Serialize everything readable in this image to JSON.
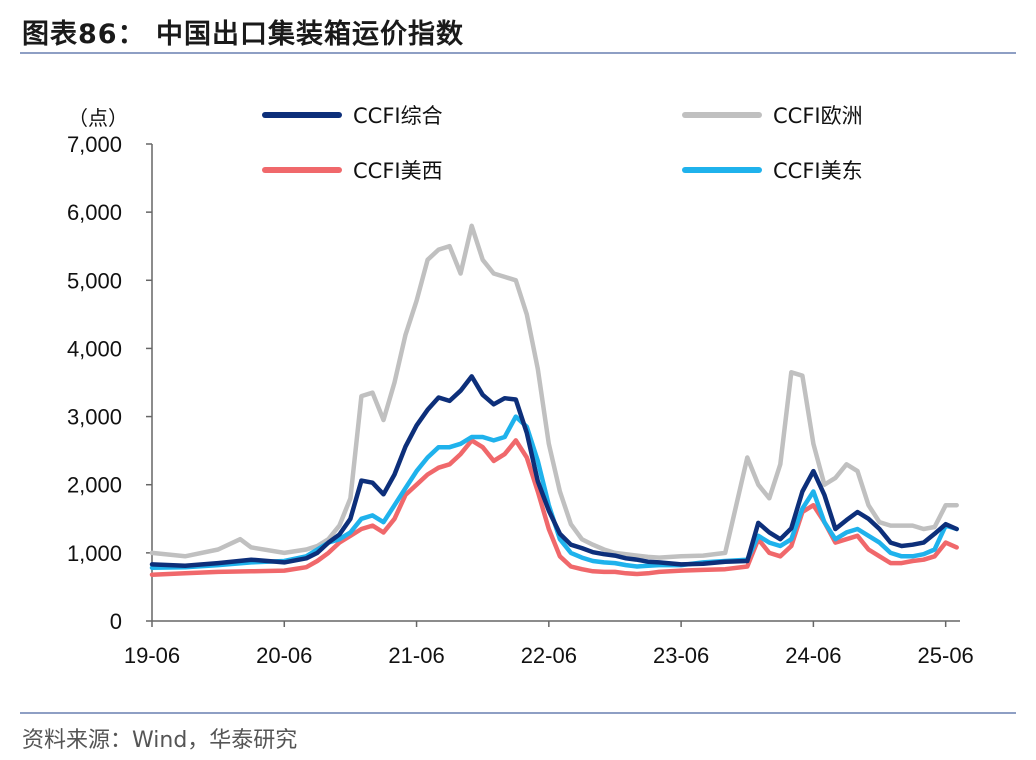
{
  "header": {
    "title": "图表86：  中国出口集装箱运价指数"
  },
  "footer": {
    "source": "资料来源：Wind，华泰研究"
  },
  "chart_data": {
    "type": "line",
    "title": "中国出口集装箱运价指数",
    "ylabel": "（点）",
    "xlabel": "",
    "ylim": [
      0,
      7000
    ],
    "yticks": [
      0,
      1000,
      2000,
      3000,
      4000,
      5000,
      6000,
      7000
    ],
    "ytick_labels": [
      "0",
      "1,000",
      "2,000",
      "3,000",
      "4,000",
      "5,000",
      "6,000",
      "7,000"
    ],
    "xlim": [
      0,
      73.3
    ],
    "x_unit": "months since 2019-06",
    "xticks": [
      0,
      12,
      24,
      36,
      48,
      60,
      72
    ],
    "xtick_labels": [
      "19-06",
      "20-06",
      "21-06",
      "22-06",
      "23-06",
      "24-06",
      "25-06"
    ],
    "grid": false,
    "legend_position": "top",
    "series": [
      {
        "name": "CCFI综合",
        "color": "#0d2f7a",
        "x": [
          0,
          3,
          6,
          9,
          12,
          14,
          15,
          16,
          17,
          18,
          19,
          20,
          21,
          22,
          23,
          24,
          25,
          26,
          27,
          28,
          29,
          30,
          31,
          32,
          33,
          34,
          35,
          36,
          37,
          38,
          39,
          40,
          41,
          42,
          43,
          44,
          45,
          46,
          48,
          50,
          52,
          54,
          55,
          56,
          57,
          58,
          59,
          60,
          61,
          62,
          63,
          64,
          65,
          66,
          67,
          68,
          69,
          70,
          71,
          72,
          73
        ],
        "values": [
          830,
          810,
          850,
          900,
          860,
          920,
          1000,
          1150,
          1270,
          1500,
          2060,
          2030,
          1860,
          2150,
          2560,
          2870,
          3100,
          3280,
          3230,
          3380,
          3590,
          3320,
          3180,
          3270,
          3250,
          2760,
          2050,
          1620,
          1280,
          1120,
          1070,
          1010,
          980,
          960,
          920,
          900,
          870,
          860,
          830,
          840,
          870,
          880,
          1440,
          1300,
          1200,
          1360,
          1900,
          2200,
          1850,
          1350,
          1480,
          1600,
          1500,
          1350,
          1150,
          1100,
          1120,
          1150,
          1280,
          1420,
          1350
        ]
      },
      {
        "name": "CCFI欧洲",
        "color": "#c0c0c0",
        "x": [
          0,
          3,
          6,
          8,
          9,
          12,
          14,
          15,
          16,
          17,
          18,
          19,
          20,
          21,
          22,
          23,
          24,
          25,
          26,
          27,
          28,
          29,
          30,
          31,
          32,
          33,
          34,
          35,
          36,
          37,
          38,
          39,
          40,
          41,
          42,
          43,
          44,
          45,
          46,
          48,
          50,
          52,
          54,
          55,
          56,
          57,
          58,
          59,
          60,
          61,
          62,
          63,
          64,
          65,
          66,
          67,
          68,
          69,
          70,
          71,
          72,
          73
        ],
        "values": [
          1000,
          950,
          1050,
          1200,
          1080,
          1000,
          1050,
          1100,
          1200,
          1400,
          1800,
          3300,
          3350,
          2950,
          3500,
          4200,
          4700,
          5300,
          5450,
          5500,
          5100,
          5800,
          5300,
          5100,
          5050,
          5000,
          4500,
          3700,
          2600,
          1900,
          1420,
          1200,
          1120,
          1050,
          1000,
          980,
          960,
          940,
          930,
          950,
          960,
          1000,
          2400,
          2000,
          1800,
          2300,
          3650,
          3600,
          2600,
          2000,
          2100,
          2300,
          2200,
          1700,
          1450,
          1400,
          1400,
          1400,
          1350,
          1380,
          1700,
          1700
        ]
      },
      {
        "name": "CCFI美西",
        "color": "#f0686b",
        "x": [
          0,
          3,
          6,
          9,
          12,
          14,
          15,
          16,
          17,
          18,
          19,
          20,
          21,
          22,
          23,
          24,
          25,
          26,
          27,
          28,
          29,
          30,
          31,
          32,
          33,
          34,
          35,
          36,
          37,
          38,
          39,
          40,
          41,
          42,
          43,
          44,
          45,
          46,
          48,
          50,
          52,
          54,
          55,
          56,
          57,
          58,
          59,
          60,
          61,
          62,
          63,
          64,
          65,
          66,
          67,
          68,
          69,
          70,
          71,
          72,
          73
        ],
        "values": [
          680,
          700,
          720,
          730,
          740,
          790,
          880,
          1000,
          1150,
          1250,
          1350,
          1400,
          1300,
          1500,
          1850,
          2000,
          2150,
          2250,
          2300,
          2450,
          2650,
          2550,
          2350,
          2450,
          2650,
          2400,
          1900,
          1350,
          950,
          800,
          760,
          730,
          720,
          720,
          700,
          690,
          700,
          720,
          740,
          750,
          760,
          800,
          1200,
          1000,
          950,
          1100,
          1600,
          1700,
          1450,
          1150,
          1200,
          1250,
          1050,
          950,
          850,
          850,
          880,
          900,
          950,
          1150,
          1080
        ]
      },
      {
        "name": "CCFI美东",
        "color": "#1fb2ec",
        "x": [
          0,
          3,
          6,
          9,
          12,
          14,
          15,
          16,
          17,
          18,
          19,
          20,
          21,
          22,
          23,
          24,
          25,
          26,
          27,
          28,
          29,
          30,
          31,
          32,
          33,
          34,
          35,
          36,
          37,
          38,
          39,
          40,
          41,
          42,
          43,
          44,
          45,
          46,
          48,
          50,
          52,
          54,
          55,
          56,
          57,
          58,
          59,
          60,
          61,
          62,
          63,
          64,
          65,
          66,
          67,
          68,
          69,
          70,
          71,
          72,
          73
        ],
        "values": [
          780,
          790,
          820,
          860,
          880,
          950,
          1050,
          1150,
          1200,
          1300,
          1500,
          1550,
          1450,
          1700,
          1950,
          2200,
          2400,
          2550,
          2550,
          2600,
          2700,
          2700,
          2650,
          2700,
          3000,
          2850,
          2350,
          1700,
          1200,
          1000,
          930,
          880,
          860,
          850,
          820,
          800,
          810,
          820,
          820,
          860,
          880,
          900,
          1250,
          1150,
          1100,
          1200,
          1650,
          1900,
          1450,
          1200,
          1300,
          1350,
          1250,
          1150,
          1000,
          950,
          950,
          980,
          1050,
          1400,
          1350
        ]
      }
    ]
  }
}
